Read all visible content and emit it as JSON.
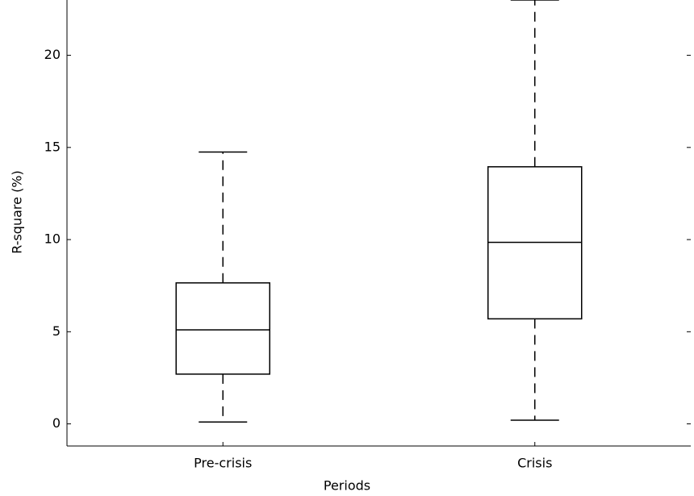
{
  "chart_data": {
    "type": "box",
    "x_label": "Periods",
    "y_label": "R-square (%)",
    "categories": [
      "Pre-crisis",
      "Crisis"
    ],
    "boxes": [
      {
        "min": 0.1,
        "q1": 2.7,
        "median": 5.1,
        "q3": 7.65,
        "max": 14.75
      },
      {
        "min": 0.2,
        "q1": 5.7,
        "median": 9.85,
        "q3": 13.95,
        "max": 23
      }
    ],
    "color": "#000000",
    "ylim": [
      -1.2,
      23
    ],
    "yticks": [
      0,
      5,
      10,
      15,
      20
    ]
  }
}
